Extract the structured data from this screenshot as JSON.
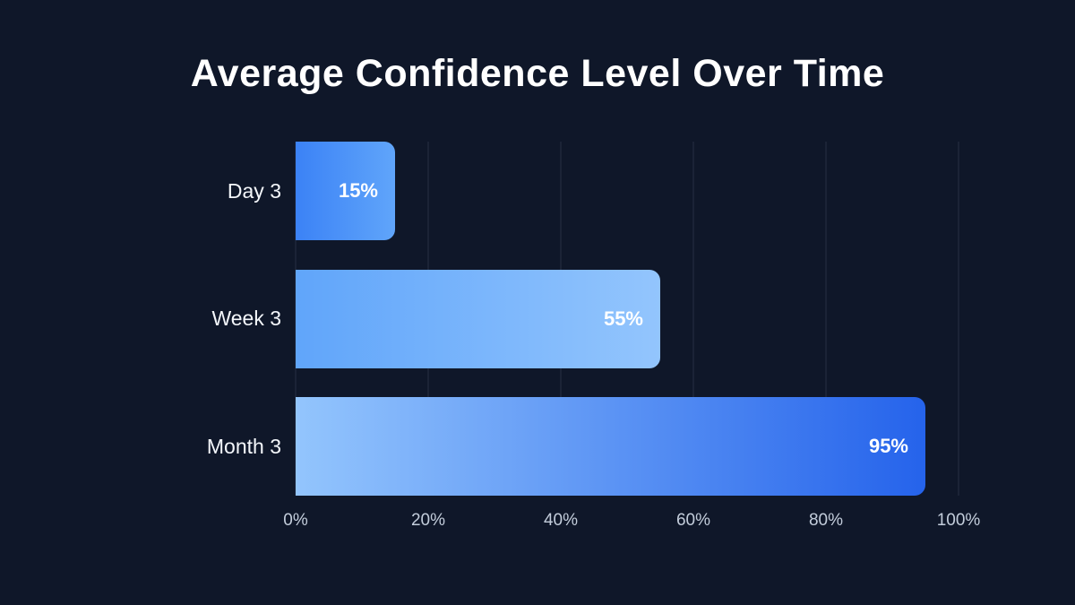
{
  "chart_data": {
    "type": "bar",
    "orientation": "horizontal",
    "title": "Average Confidence Level Over Time",
    "categories": [
      "Day 3",
      "Week 3",
      "Month 3"
    ],
    "values": [
      15,
      55,
      95
    ],
    "value_labels": [
      "15%",
      "55%",
      "95%"
    ],
    "xlabel": "",
    "ylabel": "",
    "xlim": [
      0,
      100
    ],
    "x_ticks": [
      {
        "value": 0,
        "label": "0%"
      },
      {
        "value": 20,
        "label": "20%"
      },
      {
        "value": 40,
        "label": "40%"
      },
      {
        "value": 60,
        "label": "60%"
      },
      {
        "value": 80,
        "label": "80%"
      },
      {
        "value": 100,
        "label": "100%"
      }
    ],
    "grid": "vertical",
    "legend": "none",
    "bar_gradients": [
      {
        "from": "#3b82f6",
        "to": "#60a5fa"
      },
      {
        "from": "#60a5fa",
        "to": "#93c5fd"
      },
      {
        "from": "#93c5fd",
        "to": "#2563eb"
      }
    ]
  },
  "colors": {
    "background": "#0f1729",
    "title_text": "#ffffff",
    "category_label": "#f4f7fb",
    "tick_label": "#c3cddb",
    "value_label": "#ffffff",
    "gridline": "rgba(148,163,184,0.18)"
  }
}
